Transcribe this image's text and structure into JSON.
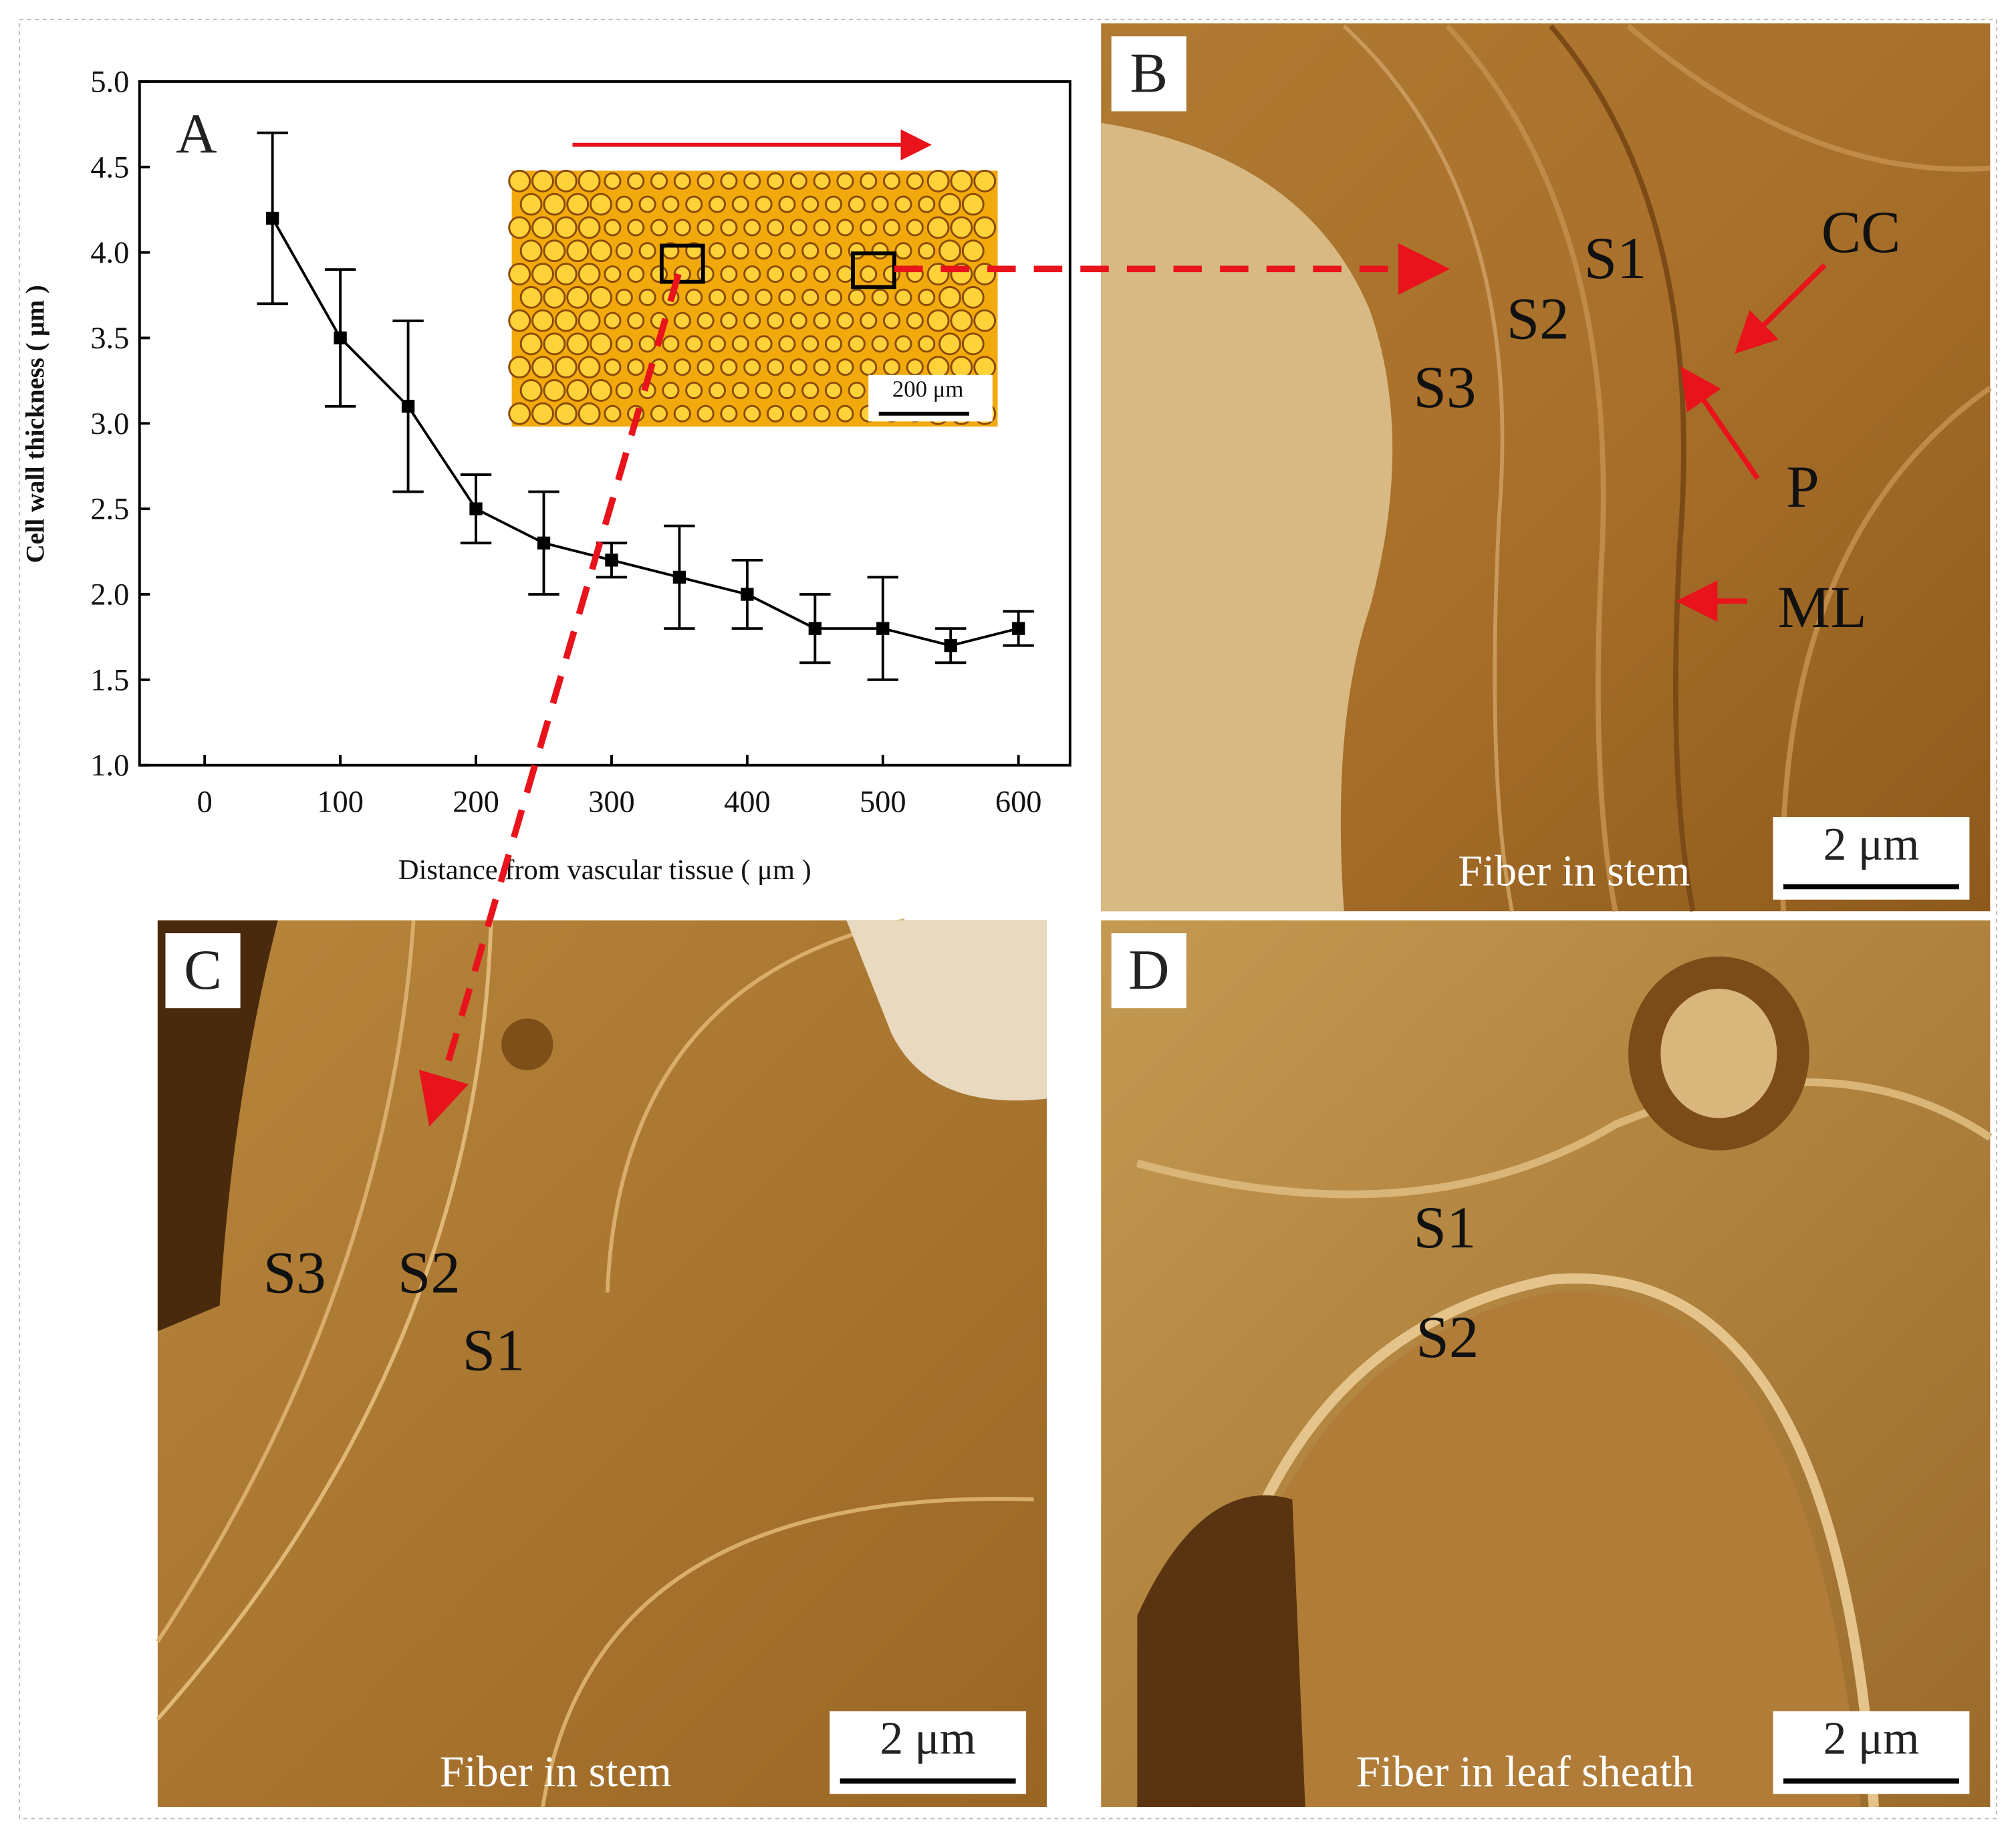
{
  "chart_data": {
    "type": "line",
    "panel_label": "A",
    "x_label": "Distance from vascular tissue ( μm )",
    "y_label": "Cell wall thickness ( μm )",
    "x": [
      50,
      100,
      150,
      200,
      250,
      300,
      350,
      400,
      450,
      500,
      550,
      600
    ],
    "values": [
      4.2,
      3.5,
      3.1,
      2.5,
      2.3,
      2.2,
      2.1,
      2.0,
      1.8,
      1.8,
      1.7,
      1.8
    ],
    "errors": [
      0.5,
      0.4,
      0.5,
      0.2,
      0.3,
      0.1,
      0.3,
      0.2,
      0.2,
      0.3,
      0.1,
      0.1
    ],
    "color": "#000000",
    "xlim": [
      -48,
      638
    ],
    "xticks": [
      0,
      100,
      200,
      300,
      400,
      500,
      600
    ],
    "ylim": [
      1,
      5
    ],
    "yticks": [
      {
        "value": 1,
        "label": "1.0"
      },
      1.5,
      {
        "value": 2,
        "label": "2.0"
      },
      2.5,
      {
        "value": 3,
        "label": "3.0"
      },
      3.5,
      {
        "value": 4,
        "label": "4.0"
      },
      4.5,
      {
        "value": 5,
        "label": "5.0"
      }
    ],
    "inset_scale": "200 μm"
  },
  "panels": {
    "B": {
      "label": "B",
      "layers": [
        "S1",
        "S2",
        "S3"
      ],
      "arrows": [
        "CC",
        "P",
        "ML"
      ],
      "caption": "Fiber in stem",
      "scale": "2 μm"
    },
    "C": {
      "label": "C",
      "layers": [
        "S3",
        "S2",
        "S1"
      ],
      "caption": "Fiber in stem",
      "scale": "2 μm"
    },
    "D": {
      "label": "D",
      "layers": [
        "S1",
        "S2"
      ],
      "caption": "Fiber in leaf sheath",
      "scale": "2 μm"
    }
  }
}
